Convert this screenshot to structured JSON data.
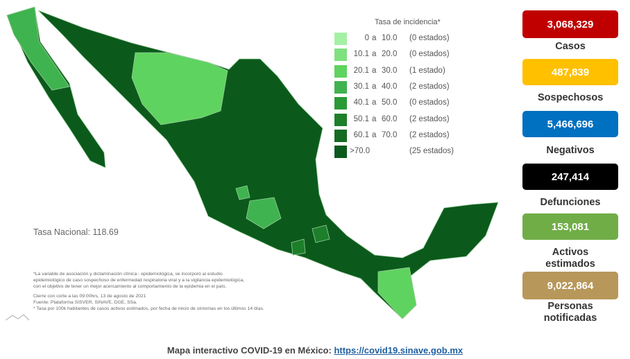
{
  "legend": {
    "title": "Tasa de incidencia*",
    "rows": [
      {
        "low": "0",
        "sep": "a",
        "high": "10.0",
        "count": "(0 estados)",
        "color": "#a4f0a4"
      },
      {
        "low": "10.1",
        "sep": "a",
        "high": "20.0",
        "count": "(0 estados)",
        "color": "#7fe07f"
      },
      {
        "low": "20.1",
        "sep": "a",
        "high": "30.0",
        "count": "(1 estado)",
        "color": "#5fd35f"
      },
      {
        "low": "30.1",
        "sep": "a",
        "high": "40.0",
        "count": "(2 estados)",
        "color": "#3fb34f"
      },
      {
        "low": "40.1",
        "sep": "a",
        "high": "50.0",
        "count": "(0 estados)",
        "color": "#2a9a36"
      },
      {
        "low": "50.1",
        "sep": "a",
        "high": "60.0",
        "count": "(2 estados)",
        "color": "#1d7f2a"
      },
      {
        "low": "60.1",
        "sep": "a",
        "high": "70.0",
        "count": "(2 estados)",
        "color": "#156b24"
      },
      {
        "low": ">70.0",
        "count": "(25 estados)",
        "color": "#0b5a1c"
      }
    ]
  },
  "national_rate": "Tasa Nacional: 118.69",
  "notes": [
    "*La variable de asociación y dictaminación clínica - epidemiológica, se incorporó al estudio",
    "epidemiológico de caso sospechoso de enfermedad respiratoria viral y a la vigilancia epidemiológica,",
    "con el objetivo de tener un mejor acercamiento al comportamiento de la epidemia en el país.",
    "Cierre con corte a las 09:00hrs, 13 de agosto de 2021",
    "Fuente: Plataforma SISVER, SINAVE, DGE, SSa.",
    "* Tasa por 100k habitantes de casos activos estimados, por fecha de inicio de síntomas en los últimos 14 días."
  ],
  "stats": [
    {
      "value": "3,068,329",
      "label": "Casos",
      "color": "#c00000"
    },
    {
      "value": "487,839",
      "label": "Sospechosos",
      "color": "#ffc000"
    },
    {
      "value": "5,466,696",
      "label": "Negativos",
      "color": "#0070c0"
    },
    {
      "value": "247,414",
      "label": "Defunciones",
      "color": "#000000"
    },
    {
      "value": "153,081",
      "label": "Activos estimados",
      "color": "#70ad47"
    },
    {
      "value": "9,022,864",
      "label": "Personas notificadas",
      "color": "#b8975b"
    }
  ],
  "footer": {
    "text": "Mapa interactivo COVID-19 en México:",
    "link": "https://covid19.sinave.gob.mx"
  }
}
